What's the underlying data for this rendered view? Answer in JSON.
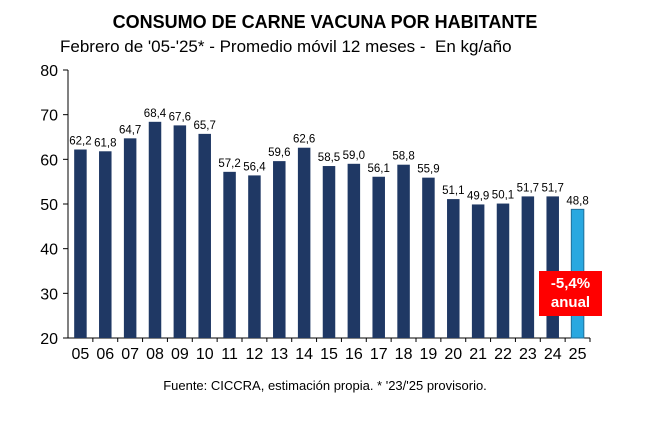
{
  "chart_data": {
    "type": "bar",
    "title": "CONSUMO DE CARNE VACUNA POR HABITANTE",
    "subtitle": "Febrero de '05-'25* - Promedio móvil 12 meses -  En kg/año",
    "categories": [
      "05",
      "06",
      "07",
      "08",
      "09",
      "10",
      "11",
      "12",
      "13",
      "14",
      "15",
      "16",
      "17",
      "18",
      "19",
      "20",
      "21",
      "22",
      "23",
      "24",
      "25"
    ],
    "values": [
      62.2,
      61.8,
      64.7,
      68.4,
      67.6,
      65.7,
      57.2,
      56.4,
      59.6,
      62.6,
      58.5,
      59.0,
      56.1,
      58.8,
      55.9,
      51.1,
      49.9,
      50.1,
      51.7,
      51.7,
      48.8
    ],
    "value_labels": [
      "62,2",
      "61,8",
      "64,7",
      "68,4",
      "67,6",
      "65,7",
      "57,2",
      "56,4",
      "59,6",
      "62,6",
      "58,5",
      "59,0",
      "56,1",
      "58,8",
      "55,9",
      "51,1",
      "49,9",
      "50,1",
      "51,7",
      "51,7",
      "48,8"
    ],
    "ylim": [
      20,
      80
    ],
    "yticks": [
      "20",
      "30",
      "40",
      "50",
      "60",
      "70",
      "80"
    ],
    "grid": false,
    "bar_color": "#1f3864",
    "highlight_color": "#29a8e0",
    "highlight_index": 20,
    "annotation": {
      "line1": "-5,4%",
      "line2": "anual",
      "color": "#ff0000"
    },
    "source": "Fuente: CICCRA, estimación propia. * '23/'25 provisorio."
  }
}
